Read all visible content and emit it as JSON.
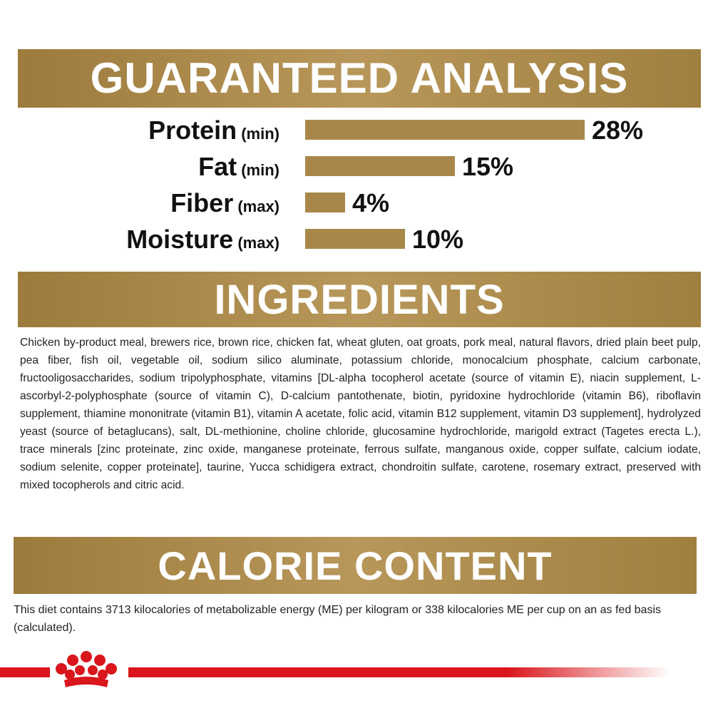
{
  "chart_data": {
    "type": "bar",
    "title": "GUARANTEED ANALYSIS",
    "categories": [
      "Protein",
      "Fat",
      "Fiber",
      "Moisture"
    ],
    "qualifiers": [
      "(min)",
      "(min)",
      "(max)",
      "(max)"
    ],
    "values": [
      28,
      15,
      4,
      10
    ],
    "value_labels": [
      "28%",
      "15%",
      "4%",
      "10%"
    ],
    "color": "#a8884a"
  },
  "ingredients": {
    "title": "INGREDIENTS",
    "text": "Chicken by-product meal, brewers rice, brown rice, chicken fat, wheat gluten, oat groats, pork meal, natural flavors, dried plain beet pulp, pea fiber, fish oil, vegetable oil, sodium silico aluminate, potassium chloride, monocalcium phosphate, calcium carbonate, fructooligosaccharides, sodium tripolyphosphate, vitamins [DL-alpha tocopherol acetate (source of vitamin E), niacin supplement, L-ascorbyl-2-polyphosphate (source of vitamin C), D-calcium pantothenate, biotin, pyridoxine hydrochloride (vitamin B6), riboflavin supplement, thiamine mononitrate (vitamin B1), vitamin A acetate, folic acid, vitamin B12 supplement, vitamin D3 supplement], hydrolyzed yeast (source of betaglucans), salt, DL-methionine, choline chloride, glucosamine hydrochloride, marigold extract (Tagetes erecta L.), trace minerals [zinc proteinate, zinc oxide, manganese proteinate, ferrous sulfate, manganous oxide, copper sulfate, calcium iodate, sodium selenite, copper proteinate], taurine, Yucca schidigera extract, chondroitin sulfate, carotene, rosemary extract, preserved with mixed tocopherols and citric acid."
  },
  "calorie": {
    "title": "CALORIE CONTENT",
    "text": "This diet contains 3713 kilocalories of metabolizable energy (ME) per kilogram or 338 kilocalories ME per cup on an as fed basis (calculated)."
  }
}
